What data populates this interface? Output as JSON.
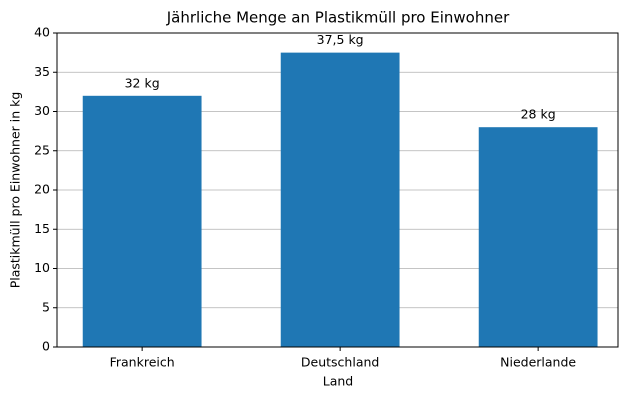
{
  "chart_data": {
    "type": "bar",
    "title": "Jährliche Menge an Plastikmüll pro Einwohner",
    "x_label": "Land",
    "y_label": "Plastikmüll pro Einwohner in kg",
    "categories": [
      "Frankreich",
      "Deutschland",
      "Niederlande"
    ],
    "values": [
      32,
      37.5,
      28
    ],
    "value_labels": [
      "32 kg",
      "37,5 kg",
      "28 kg"
    ],
    "color": "#1f77b4",
    "ylim": [
      0,
      40
    ],
    "yticks": [
      0,
      5,
      10,
      15,
      20,
      25,
      30,
      35,
      40
    ],
    "grid": true
  }
}
